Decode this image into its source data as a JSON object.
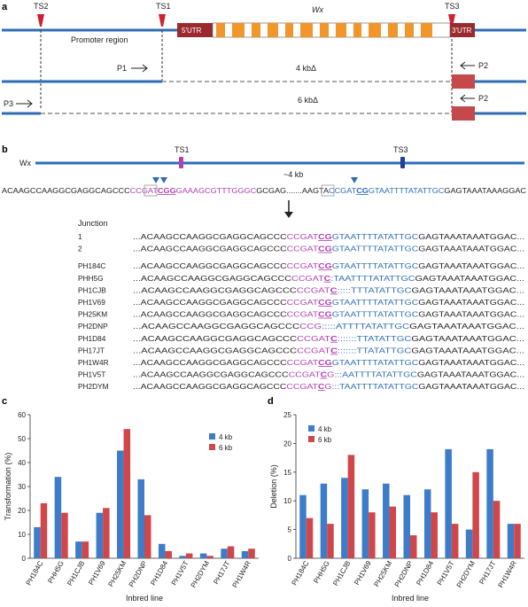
{
  "panel_a": {
    "letter": "a",
    "ts_labels": [
      "TS2",
      "TS1",
      "TS3"
    ],
    "promoter_label": "Promoter region",
    "gene_label": "Wx",
    "utr5": "5′UTR",
    "utr3": "3′UTR",
    "p1": "P1",
    "p2": "P2",
    "p3": "P3",
    "del4": "4 kbΔ",
    "del6": "6 kbΔ",
    "colors": {
      "line": "#2e6db4",
      "exon": "#f0962a",
      "utr": "#9b2a2e",
      "marker": "#d0202f"
    }
  },
  "panel_b": {
    "letter": "b",
    "wx_label": "Wx",
    "ts1": "TS1",
    "ts3": "TS3",
    "kb_label": "~4 kb",
    "top_seq_left": [
      {
        "t": "ACAAGCCAAGGCGAGGCAGCCC",
        "c": "#222222"
      },
      {
        "t": "CCGAT",
        "c": "#b040b0"
      },
      {
        "t": "CGG",
        "c": "#b040b0",
        "b": true
      },
      {
        "t": "GAAAGCGTTTGGGC",
        "c": "#b040b0"
      },
      {
        "t": "GCGAG.......AAGTA",
        "c": "#222222"
      },
      {
        "t": "CCGAT",
        "c": "#2e6db4"
      },
      {
        "t": "CG",
        "c": "#2e6db4",
        "b": true
      },
      {
        "t": "GTAATTTTATATTGC",
        "c": "#2e6db4"
      },
      {
        "t": "GAGTAAATAAAGGAC",
        "c": "#222222"
      }
    ],
    "junction_label": "Junction",
    "rows": [
      {
        "name": "1",
        "parts": [
          [
            "...ACAAGCCAAGGCGAGGCAGCCC",
            "#222222",
            0
          ],
          [
            "CCGAT",
            "#b040b0",
            0
          ],
          [
            "CG",
            "#b040b0",
            1
          ],
          [
            "GTAATTTTATATTGC",
            "#2e6db4",
            0
          ],
          [
            "GAGTAAATAAATGGAC...",
            "#222222",
            0
          ]
        ]
      },
      {
        "name": "2",
        "parts": [
          [
            "...ACAAGCCAAGGCGAGGCAGCCC",
            "#222222",
            0
          ],
          [
            "CCGAT",
            "#b040b0",
            0
          ],
          [
            "CG",
            "#b040b0",
            1
          ],
          [
            "GTAATTTTATATTGC",
            "#2e6db4",
            0
          ],
          [
            "GAGTAAATAAATGGAC...",
            "#222222",
            0
          ]
        ]
      },
      {
        "name": "PH184C",
        "parts": [
          [
            "...ACAAGCCAAGGCGAGGCAGCCC",
            "#222222",
            0
          ],
          [
            "CCGAT",
            "#b040b0",
            0
          ],
          [
            "CG",
            "#b040b0",
            1
          ],
          [
            "GTAATTTTATATTGC",
            "#2e6db4",
            0
          ],
          [
            "GAGTAAATAAATGGAC...",
            "#222222",
            0
          ]
        ]
      },
      {
        "name": "PHH5G",
        "parts": [
          [
            "...ACAAGCCAAGGCGAGGCAGCCC",
            "#222222",
            0
          ],
          [
            "CCGAT",
            "#b040b0",
            0
          ],
          [
            "C",
            "#b040b0",
            1
          ],
          [
            ":",
            "#2e6db4",
            0
          ],
          [
            "TAATTTTATATTGC",
            "#2e6db4",
            0
          ],
          [
            "GAGTAAATAAATGGAC...",
            "#222222",
            0
          ]
        ]
      },
      {
        "name": "PH1CJB",
        "parts": [
          [
            "...ACAAGCCAAGGCGAGGCAGCCC",
            "#222222",
            0
          ],
          [
            "CCGAT",
            "#b040b0",
            0
          ],
          [
            "C",
            "#b040b0",
            1
          ],
          [
            ":::::",
            "#2e6db4",
            0
          ],
          [
            "TTTATATTGC",
            "#2e6db4",
            0
          ],
          [
            "GAGTAAATAAATGGAC...",
            "#222222",
            0
          ]
        ]
      },
      {
        "name": "PH1V69",
        "parts": [
          [
            "...ACAAGCCAAGGCGAGGCAGCCC",
            "#222222",
            0
          ],
          [
            "CCGAT",
            "#b040b0",
            0
          ],
          [
            "CG",
            "#b040b0",
            1
          ],
          [
            "GTAATTTTATATTGC",
            "#2e6db4",
            0
          ],
          [
            "GAGTAAATAAATGGAC...",
            "#222222",
            0
          ]
        ]
      },
      {
        "name": "PH25KM",
        "parts": [
          [
            "...ACAAGCCAAGGCGAGGCAGCCC",
            "#222222",
            0
          ],
          [
            "CCGAT",
            "#b040b0",
            0
          ],
          [
            "CG",
            "#b040b0",
            1
          ],
          [
            "GTAATTTTATATTGC",
            "#2e6db4",
            0
          ],
          [
            "GAGTAAATAAATGGAC...",
            "#222222",
            0
          ]
        ]
      },
      {
        "name": "PH2DNP",
        "parts": [
          [
            "...ACAAGCCAAGGCGAGGCAGCCC",
            "#222222",
            0
          ],
          [
            "CCG",
            "#b040b0",
            0
          ],
          [
            ":::::",
            "#2e6db4",
            0
          ],
          [
            "ATTTTATATTGC",
            "#2e6db4",
            0
          ],
          [
            "GAGTAAATAAATGGAC...",
            "#222222",
            0
          ]
        ]
      },
      {
        "name": "PH1D84",
        "parts": [
          [
            "...ACAAGCCAAGGCGAGGCAGCCC",
            "#222222",
            0
          ],
          [
            "CCGAT",
            "#b040b0",
            0
          ],
          [
            "C",
            "#b040b0",
            1
          ],
          [
            ":::::::",
            "#2e6db4",
            0
          ],
          [
            "TTATATTGC",
            "#2e6db4",
            0
          ],
          [
            "GAGTAAATAAATGGAC...",
            "#222222",
            0
          ]
        ]
      },
      {
        "name": "PH17JT",
        "parts": [
          [
            "...ACAAGCCAAGGCGAGGCAGCCC",
            "#222222",
            0
          ],
          [
            "CCGAT",
            "#b040b0",
            0
          ],
          [
            "C",
            "#b040b0",
            1
          ],
          [
            ":::::::",
            "#2e6db4",
            0
          ],
          [
            "TTATATTGC",
            "#2e6db4",
            0
          ],
          [
            "GAGTAAATAAATGGAC...",
            "#222222",
            0
          ]
        ]
      },
      {
        "name": "PH1W4R",
        "parts": [
          [
            "...ACAAGCCAAGGCGAGGCAGCCC",
            "#222222",
            0
          ],
          [
            "CCGAT",
            "#b040b0",
            0
          ],
          [
            "CG",
            "#b040b0",
            1
          ],
          [
            "GTAATTTTATATTGC",
            "#2e6db4",
            0
          ],
          [
            "GAGTAAATAAATGGAC...",
            "#222222",
            0
          ]
        ]
      },
      {
        "name": "PH1V5T",
        "parts": [
          [
            "...ACAAGCCAAGGCGAGGCAGCCC",
            "#222222",
            0
          ],
          [
            "CCGAT",
            "#b040b0",
            0
          ],
          [
            "C",
            "#b040b0",
            1
          ],
          [
            "G",
            "#b040b0",
            0
          ],
          [
            ":::",
            "#2e6db4",
            0
          ],
          [
            "AATTTTATATTGC",
            "#2e6db4",
            0
          ],
          [
            "GAGTAAATAAATGGAC...",
            "#222222",
            0
          ]
        ]
      },
      {
        "name": "PH2DYM",
        "parts": [
          [
            "...ACAAGCCAAGGCGAGGCAGCCC",
            "#222222",
            0
          ],
          [
            "CCGAT",
            "#b040b0",
            0
          ],
          [
            "C",
            "#b040b0",
            1
          ],
          [
            "G",
            "#b040b0",
            0
          ],
          [
            ":::",
            "#2e6db4",
            0
          ],
          [
            "TAATTTTATATTGC",
            "#2e6db4",
            0
          ],
          [
            "GAGTAAATAAATGGAC...",
            "#222222",
            0
          ]
        ]
      }
    ]
  },
  "chart_data": [
    {
      "panel": "c",
      "type": "bar",
      "categories": [
        "PH184C",
        "PHH5G",
        "PH1CJB",
        "PH1V69",
        "PH25KM",
        "PH2DNP",
        "PH1D84",
        "PH1V5T",
        "PH2DYM",
        "PH17JT",
        "PH1W4R"
      ],
      "series": [
        {
          "name": "4 kb",
          "color": "#3d7cc9",
          "values": [
            13,
            34,
            7,
            19,
            45,
            33,
            6,
            1,
            2,
            4,
            3
          ]
        },
        {
          "name": "6 kb",
          "color": "#d0474a",
          "values": [
            23,
            19,
            7,
            21,
            54,
            18,
            3,
            2,
            1,
            5,
            4
          ]
        }
      ],
      "title": "",
      "xlabel": "Inbred line",
      "ylabel": "Transformation (%)",
      "ylim": [
        0,
        60
      ],
      "yticks": [
        0,
        10,
        20,
        30,
        40,
        50,
        60
      ],
      "legend": "top-right"
    },
    {
      "panel": "d",
      "type": "bar",
      "categories": [
        "PH184C",
        "PHH5G",
        "PH1CJB",
        "PH1V69",
        "PH25KM",
        "PH2DNP",
        "PH1D84",
        "PH1V5T",
        "PH2DYM",
        "PH17JT",
        "PH1W4R"
      ],
      "series": [
        {
          "name": "4 kb",
          "color": "#3d7cc9",
          "values": [
            11,
            13,
            14,
            12,
            13,
            11,
            12,
            19,
            5,
            19,
            6
          ]
        },
        {
          "name": "6 kb",
          "color": "#d0474a",
          "values": [
            7,
            6,
            18,
            8,
            9,
            4,
            8,
            6,
            15,
            10,
            6
          ]
        }
      ],
      "title": "",
      "xlabel": "Inbred line",
      "ylabel": "Deletion (%)",
      "ylim": [
        0,
        25
      ],
      "yticks": [
        0,
        5,
        10,
        15,
        20,
        25
      ],
      "legend": "top-left"
    }
  ]
}
